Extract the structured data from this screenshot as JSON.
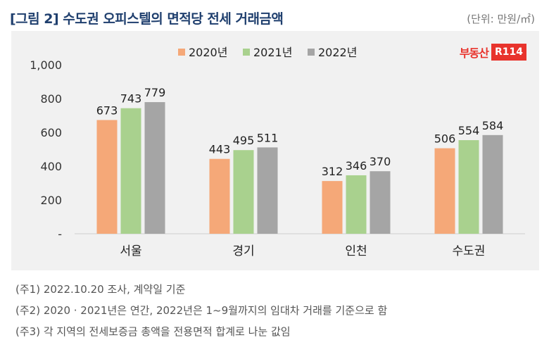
{
  "figure_title": "[그림 2] 수도권 오피스텔의 면적당 전세 거래금액",
  "unit": "(단위: 만원/㎡)",
  "logo": {
    "text": "부동산",
    "box": "R114"
  },
  "colors": {
    "panel_bg": "#f1f1f1",
    "s2020": "#f5a878",
    "s2021": "#a9d18e",
    "s2022": "#a5a5a5"
  },
  "chart_data": {
    "type": "bar",
    "title": "수도권 오피스텔의 면적당 전세 거래금액",
    "xlabel": "",
    "ylabel": "",
    "ylim": [
      0,
      1000
    ],
    "yticks": [
      0,
      200,
      400,
      600,
      800,
      1000
    ],
    "ytick_labels": [
      "-",
      "200",
      "400",
      "600",
      "800",
      "1,000"
    ],
    "categories": [
      "서울",
      "경기",
      "인천",
      "수도권"
    ],
    "series": [
      {
        "name": "2020년",
        "values": [
          673,
          443,
          312,
          506
        ]
      },
      {
        "name": "2021년",
        "values": [
          743,
          495,
          346,
          554
        ]
      },
      {
        "name": "2022년",
        "values": [
          779,
          511,
          370,
          584
        ]
      }
    ],
    "legend_position": "top-center",
    "grid": false
  },
  "notes": [
    "(주1) 2022.10.20 조사, 계약일 기준",
    "(주2) 2020 · 2021년은 연간, 2022년은 1~9월까지의 임대차 거래를 기준으로 함",
    "(주3) 각 지역의 전세보증금 총액을 전용면적 합계로 나눈 값임"
  ]
}
